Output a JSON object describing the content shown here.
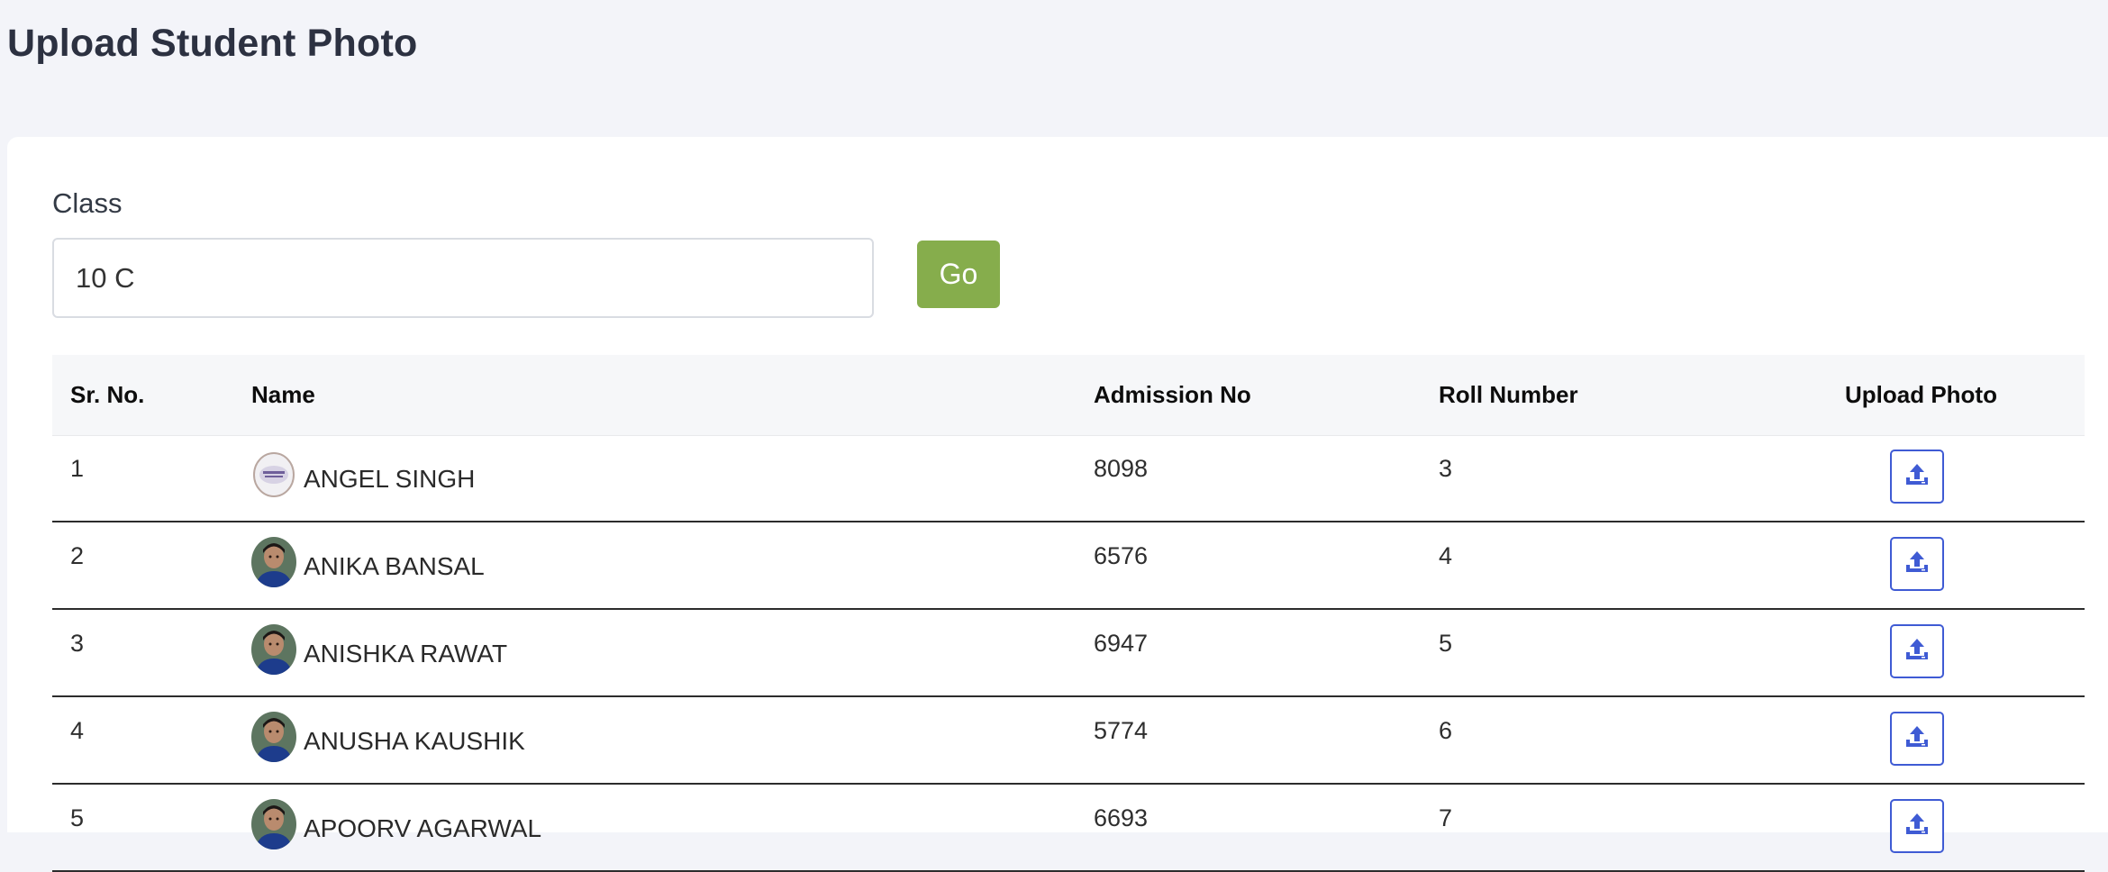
{
  "page": {
    "title": "Upload Student Photo"
  },
  "filter": {
    "class_label": "Class",
    "class_value": "10 C",
    "go_label": "Go"
  },
  "table": {
    "headers": {
      "sr_no": "Sr. No.",
      "name": "Name",
      "admission_no": "Admission No",
      "roll_number": "Roll Number",
      "upload_photo": "Upload Photo"
    },
    "rows": [
      {
        "sr_no": "1",
        "name": "ANGEL SINGH",
        "admission_no": "8098",
        "roll_number": "3",
        "avatar": "no-image-available",
        "avatar_logo_text": "No Image Available"
      },
      {
        "sr_no": "2",
        "name": "ANIKA BANSAL",
        "admission_no": "6576",
        "roll_number": "4",
        "avatar": "student-photo"
      },
      {
        "sr_no": "3",
        "name": "ANISHKA RAWAT",
        "admission_no": "6947",
        "roll_number": "5",
        "avatar": "student-photo"
      },
      {
        "sr_no": "4",
        "name": "ANUSHA KAUSHIK",
        "admission_no": "5774",
        "roll_number": "6",
        "avatar": "student-photo"
      },
      {
        "sr_no": "5",
        "name": "APOORV AGARWAL",
        "admission_no": "6693",
        "roll_number": "7",
        "avatar": "student-photo"
      }
    ]
  },
  "colors": {
    "background": "#f3f4f9",
    "go_button": "#86ad4c",
    "upload_icon": "#3f5bd4"
  },
  "icons": {
    "upload": "upload-icon"
  }
}
